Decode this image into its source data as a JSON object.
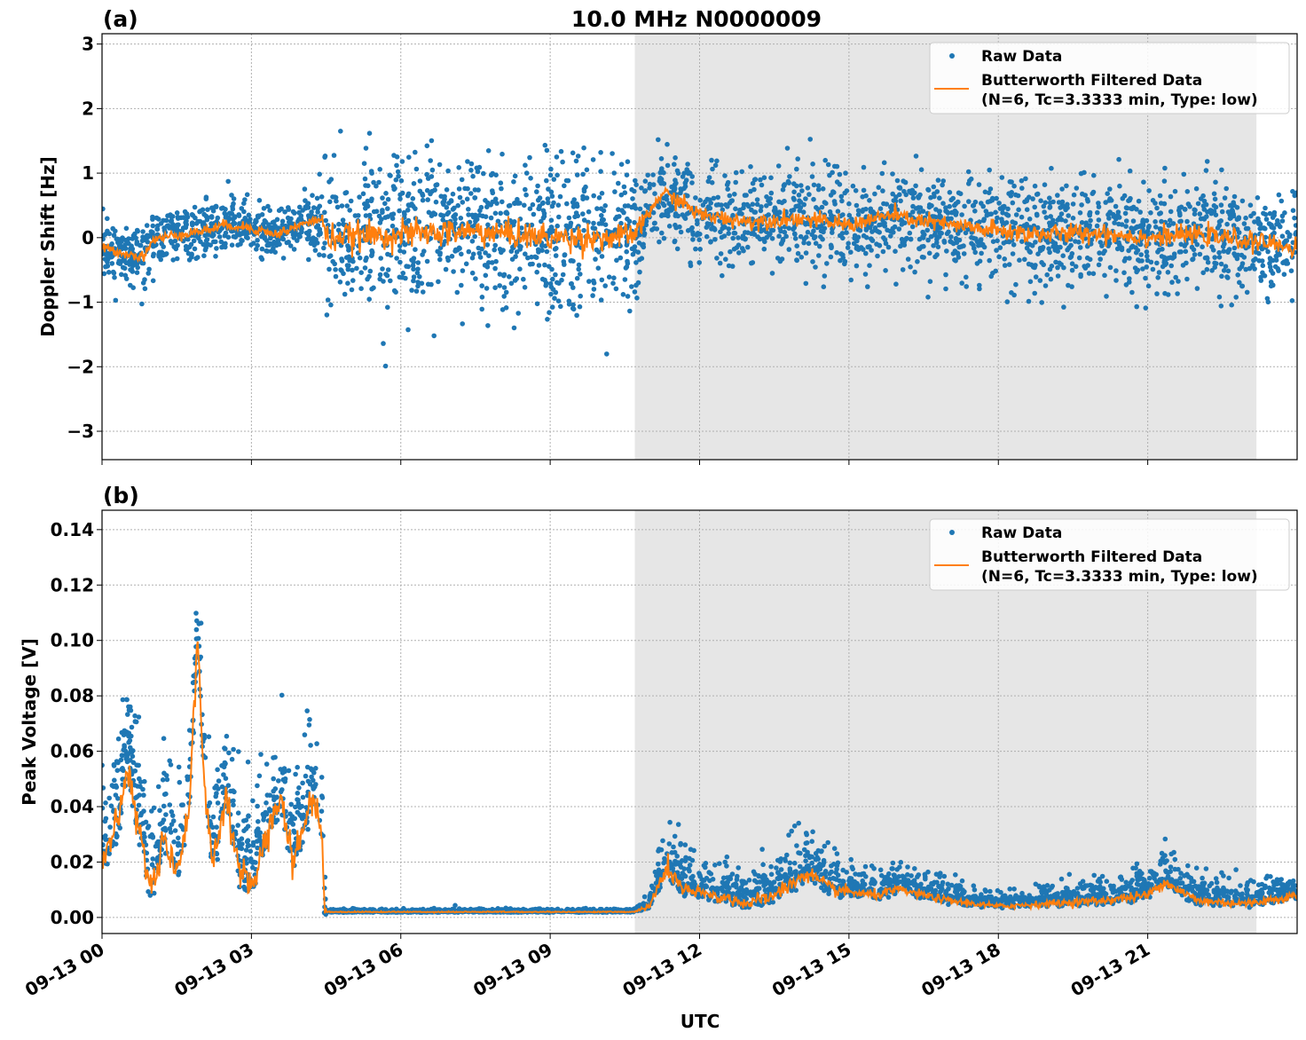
{
  "title": "10.0 MHz N0000009",
  "xlabel": "UTC",
  "colors": {
    "raw": "#1f77b4",
    "filtered": "#ff7f0e",
    "shade": "#e6e6e6"
  },
  "chart_data": [
    {
      "type": "scatter",
      "panel_label": "(a)",
      "ylabel": "Doppler Shift [Hz]",
      "xlim": [
        "09-13 00:00",
        "09-14 00:00"
      ],
      "ylim": [
        -3.44,
        3.16
      ],
      "yticks": [
        "−3",
        "−2",
        "−1",
        "0",
        "1",
        "2",
        "3"
      ],
      "ytick_values": [
        -3,
        -2,
        -1,
        0,
        1,
        2,
        3
      ],
      "xticks": [
        "09-13 00",
        "09-13 03",
        "09-13 06",
        "09-13 09",
        "09-13 12",
        "09-13 15",
        "09-13 18",
        "09-13 21"
      ],
      "grid": true,
      "legend": {
        "position": "top-right",
        "entries": [
          "Raw Data",
          "Butterworth Filtered Data",
          "(N=6, Tc=3.3333 min, Type: low)"
        ]
      },
      "shaded_span": [
        "09-13 10:42",
        "09-13 23:11"
      ],
      "series": [
        {
          "name": "Butterworth Filtered Data (N=6, Tc=3.3333 min, Type: low)",
          "kind": "line",
          "points": [
            [
              "00:00",
              -0.15
            ],
            [
              "00:30",
              -0.25
            ],
            [
              "00:50",
              -0.3
            ],
            [
              "01:00",
              -0.05
            ],
            [
              "01:30",
              0.05
            ],
            [
              "02:00",
              0.1
            ],
            [
              "02:30",
              0.2
            ],
            [
              "03:00",
              0.15
            ],
            [
              "03:30",
              0.05
            ],
            [
              "04:00",
              0.2
            ],
            [
              "04:25",
              0.3
            ],
            [
              "04:30",
              0.0
            ],
            [
              "06:00",
              0.05
            ],
            [
              "07:30",
              0.1
            ],
            [
              "09:00",
              0.0
            ],
            [
              "10:30",
              0.0
            ],
            [
              "10:45",
              0.1
            ],
            [
              "11:15",
              0.7
            ],
            [
              "11:45",
              0.5
            ],
            [
              "12:00",
              0.35
            ],
            [
              "13:00",
              0.25
            ],
            [
              "14:00",
              0.3
            ],
            [
              "15:00",
              0.2
            ],
            [
              "15:50",
              0.35
            ],
            [
              "16:30",
              0.25
            ],
            [
              "17:30",
              0.15
            ],
            [
              "18:00",
              0.1
            ],
            [
              "19:00",
              0.05
            ],
            [
              "20:00",
              0.08
            ],
            [
              "21:00",
              0.0
            ],
            [
              "22:00",
              0.05
            ],
            [
              "23:00",
              -0.05
            ],
            [
              "24:00",
              -0.15
            ]
          ]
        },
        {
          "name": "Raw Data",
          "kind": "scatter",
          "spread_sd": [
            [
              "00:00",
              0.22
            ],
            [
              "04:25",
              0.22
            ],
            [
              "04:30",
              0.6
            ],
            [
              "10:40",
              0.6
            ],
            [
              "10:50",
              0.35
            ],
            [
              "17:00",
              0.35
            ],
            [
              "18:00",
              0.45
            ],
            [
              "22:00",
              0.4
            ],
            [
              "24:00",
              0.4
            ]
          ]
        }
      ]
    },
    {
      "type": "scatter",
      "panel_label": "(b)",
      "ylabel": "Peak Voltage [V]",
      "xlim": [
        "09-13 00:00",
        "09-14 00:00"
      ],
      "ylim": [
        -0.0058,
        0.147
      ],
      "yticks": [
        "0.00",
        "0.02",
        "0.04",
        "0.06",
        "0.08",
        "0.10",
        "0.12",
        "0.14"
      ],
      "ytick_values": [
        0,
        0.02,
        0.04,
        0.06,
        0.08,
        0.1,
        0.12,
        0.14
      ],
      "xticks": [
        "09-13 00",
        "09-13 03",
        "09-13 06",
        "09-13 09",
        "09-13 12",
        "09-13 15",
        "09-13 18",
        "09-13 21"
      ],
      "grid": true,
      "legend": {
        "position": "top-right",
        "entries": [
          "Raw Data",
          "Butterworth Filtered Data",
          "(N=6, Tc=3.3333 min, Type: low)"
        ]
      },
      "shaded_span": [
        "09-13 10:42",
        "09-13 23:11"
      ],
      "series": [
        {
          "name": "Butterworth Filtered Data (N=6, Tc=3.3333 min, Type: low)",
          "kind": "line",
          "points": [
            [
              "00:00",
              0.02
            ],
            [
              "00:20",
              0.035
            ],
            [
              "00:30",
              0.055
            ],
            [
              "00:45",
              0.03
            ],
            [
              "01:00",
              0.01
            ],
            [
              "01:15",
              0.03
            ],
            [
              "01:30",
              0.015
            ],
            [
              "01:45",
              0.04
            ],
            [
              "01:55",
              0.1
            ],
            [
              "02:05",
              0.04
            ],
            [
              "02:15",
              0.02
            ],
            [
              "02:30",
              0.045
            ],
            [
              "02:45",
              0.015
            ],
            [
              "03:00",
              0.012
            ],
            [
              "03:20",
              0.03
            ],
            [
              "03:35",
              0.045
            ],
            [
              "03:50",
              0.02
            ],
            [
              "04:15",
              0.045
            ],
            [
              "04:25",
              0.03
            ],
            [
              "04:28",
              0.002
            ],
            [
              "10:40",
              0.002
            ],
            [
              "11:00",
              0.004
            ],
            [
              "11:20",
              0.018
            ],
            [
              "11:40",
              0.01
            ],
            [
              "12:30",
              0.007
            ],
            [
              "13:00",
              0.005
            ],
            [
              "13:30",
              0.008
            ],
            [
              "14:10",
              0.016
            ],
            [
              "14:40",
              0.01
            ],
            [
              "15:30",
              0.008
            ],
            [
              "16:00",
              0.01
            ],
            [
              "17:00",
              0.006
            ],
            [
              "18:00",
              0.004
            ],
            [
              "19:00",
              0.005
            ],
            [
              "20:00",
              0.006
            ],
            [
              "21:00",
              0.008
            ],
            [
              "21:20",
              0.013
            ],
            [
              "22:00",
              0.006
            ],
            [
              "23:00",
              0.005
            ],
            [
              "24:00",
              0.008
            ]
          ]
        },
        {
          "name": "Raw Data",
          "kind": "scatter",
          "spread_sd": [
            [
              "00:00",
              0.012
            ],
            [
              "04:28",
              0.012
            ],
            [
              "04:30",
              0.0004
            ],
            [
              "10:40",
              0.0004
            ],
            [
              "11:00",
              0.002
            ],
            [
              "11:20",
              0.008
            ],
            [
              "12:00",
              0.004
            ],
            [
              "14:10",
              0.006
            ],
            [
              "15:00",
              0.004
            ],
            [
              "18:00",
              0.002
            ],
            [
              "21:20",
              0.004
            ],
            [
              "24:00",
              0.003
            ]
          ]
        }
      ]
    }
  ]
}
